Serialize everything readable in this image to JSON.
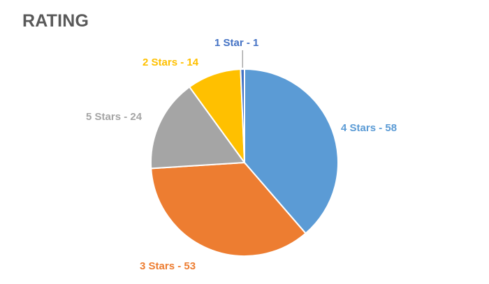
{
  "chart_data": {
    "type": "pie",
    "title": "RATING",
    "start_angle_deg": -90,
    "direction": "clockwise",
    "legend": "none",
    "slices": [
      {
        "category": "4 Stars",
        "value": 58,
        "label": "4 Stars - 58",
        "color": "#5B9BD5"
      },
      {
        "category": "3 Stars",
        "value": 53,
        "label": "3 Stars - 53",
        "color": "#ED7D31"
      },
      {
        "category": "5 Stars",
        "value": 24,
        "label": "5 Stars - 24",
        "color": "#A5A5A5"
      },
      {
        "category": "2 Stars",
        "value": 14,
        "label": "2 Stars - 14",
        "color": "#FFC000"
      },
      {
        "category": "1 Star",
        "value": 1,
        "label": "1 Star - 1",
        "color": "#4472C4"
      }
    ]
  }
}
